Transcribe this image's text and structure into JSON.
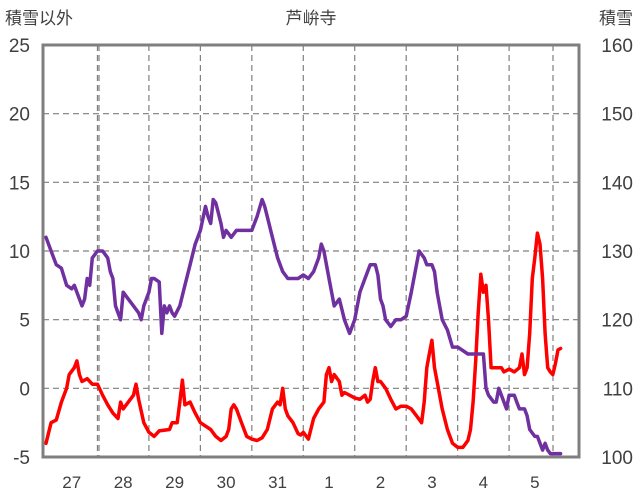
{
  "chart_data": {
    "type": "line",
    "title": "芦峅寺",
    "ylabel_left": "積雪以外",
    "ylabel_right": "積雪",
    "y_left": {
      "min": -5,
      "max": 25,
      "ticks": [
        -5,
        0,
        5,
        10,
        15,
        20,
        25
      ]
    },
    "y_right": {
      "min": 100,
      "max": 160,
      "ticks": [
        100,
        110,
        120,
        130,
        140,
        150,
        160
      ]
    },
    "x": {
      "start": 0,
      "end": 10.3,
      "ticks": [
        0.5,
        1.5,
        2.5,
        3.5,
        4.5,
        5.5,
        6.5,
        7.5,
        8.5,
        9.5
      ],
      "tick_labels": [
        "27",
        "28",
        "29",
        "30",
        "31",
        "1",
        "2",
        "3",
        "4",
        "5"
      ]
    },
    "grid": {
      "vertical_dashed": true,
      "horizontal_dashed_left_ticks": true
    },
    "series": [
      {
        "axis": "left",
        "color": "#ff0000",
        "points": [
          [
            0.0,
            -4.0
          ],
          [
            0.1,
            -2.5
          ],
          [
            0.2,
            -2.3
          ],
          [
            0.3,
            -1.0
          ],
          [
            0.4,
            0.0
          ],
          [
            0.45,
            1.0
          ],
          [
            0.55,
            1.5
          ],
          [
            0.6,
            2.0
          ],
          [
            0.65,
            1.0
          ],
          [
            0.7,
            0.5
          ],
          [
            0.8,
            0.7
          ],
          [
            0.9,
            0.3
          ],
          [
            1.0,
            0.3
          ],
          [
            1.1,
            -0.5
          ],
          [
            1.2,
            -1.2
          ],
          [
            1.3,
            -1.8
          ],
          [
            1.4,
            -2.2
          ],
          [
            1.45,
            -1.0
          ],
          [
            1.5,
            -1.5
          ],
          [
            1.6,
            -1.0
          ],
          [
            1.7,
            -0.5
          ],
          [
            1.75,
            0.3
          ],
          [
            1.8,
            -0.8
          ],
          [
            1.9,
            -2.5
          ],
          [
            2.0,
            -3.2
          ],
          [
            2.1,
            -3.5
          ],
          [
            2.2,
            -3.1
          ],
          [
            2.4,
            -3.0
          ],
          [
            2.45,
            -2.5
          ],
          [
            2.55,
            -2.5
          ],
          [
            2.6,
            -1.0
          ],
          [
            2.65,
            0.6
          ],
          [
            2.7,
            -1.2
          ],
          [
            2.8,
            -1.0
          ],
          [
            2.9,
            -1.8
          ],
          [
            3.0,
            -2.5
          ],
          [
            3.2,
            -3.0
          ],
          [
            3.3,
            -3.5
          ],
          [
            3.4,
            -3.8
          ],
          [
            3.5,
            -3.5
          ],
          [
            3.55,
            -3.0
          ],
          [
            3.6,
            -1.5
          ],
          [
            3.65,
            -1.2
          ],
          [
            3.7,
            -1.5
          ],
          [
            3.8,
            -2.5
          ],
          [
            3.9,
            -3.5
          ],
          [
            4.0,
            -3.7
          ],
          [
            4.1,
            -3.8
          ],
          [
            4.2,
            -3.6
          ],
          [
            4.3,
            -3.0
          ],
          [
            4.4,
            -1.5
          ],
          [
            4.5,
            -1.0
          ],
          [
            4.55,
            -1.2
          ],
          [
            4.6,
            0.0
          ],
          [
            4.65,
            -1.5
          ],
          [
            4.7,
            -2.0
          ],
          [
            4.8,
            -2.5
          ],
          [
            4.9,
            -3.3
          ],
          [
            4.95,
            -3.4
          ],
          [
            5.0,
            -3.2
          ],
          [
            5.1,
            -3.7
          ],
          [
            5.2,
            -2.2
          ],
          [
            5.3,
            -1.5
          ],
          [
            5.4,
            -1.0
          ],
          [
            5.45,
            1.0
          ],
          [
            5.5,
            1.5
          ],
          [
            5.55,
            0.5
          ],
          [
            5.6,
            1.0
          ],
          [
            5.7,
            0.5
          ],
          [
            5.75,
            -0.5
          ],
          [
            5.8,
            -0.3
          ],
          [
            5.9,
            -0.5
          ],
          [
            6.0,
            -0.7
          ],
          [
            6.1,
            -0.8
          ],
          [
            6.2,
            -0.5
          ],
          [
            6.25,
            -1.0
          ],
          [
            6.3,
            -0.8
          ],
          [
            6.35,
            0.5
          ],
          [
            6.4,
            1.5
          ],
          [
            6.45,
            0.5
          ],
          [
            6.5,
            0.5
          ],
          [
            6.6,
            0.0
          ],
          [
            6.7,
            -0.8
          ],
          [
            6.8,
            -1.5
          ],
          [
            6.9,
            -1.3
          ],
          [
            7.0,
            -1.3
          ],
          [
            7.1,
            -1.5
          ],
          [
            7.2,
            -2.0
          ],
          [
            7.3,
            -2.5
          ],
          [
            7.35,
            -1.0
          ],
          [
            7.4,
            1.5
          ],
          [
            7.45,
            2.5
          ],
          [
            7.5,
            3.5
          ],
          [
            7.55,
            1.5
          ],
          [
            7.6,
            0.5
          ],
          [
            7.7,
            -1.5
          ],
          [
            7.8,
            -3.0
          ],
          [
            7.9,
            -4.0
          ],
          [
            8.0,
            -4.3
          ],
          [
            8.1,
            -4.3
          ],
          [
            8.2,
            -3.8
          ],
          [
            8.25,
            -3.0
          ],
          [
            8.3,
            -1.0
          ],
          [
            8.35,
            2.0
          ],
          [
            8.4,
            5.5
          ],
          [
            8.45,
            8.3
          ],
          [
            8.5,
            7.0
          ],
          [
            8.55,
            7.5
          ],
          [
            8.6,
            5.0
          ],
          [
            8.65,
            1.5
          ],
          [
            8.75,
            1.5
          ],
          [
            8.85,
            1.5
          ],
          [
            8.9,
            1.2
          ],
          [
            9.0,
            1.4
          ],
          [
            9.1,
            1.2
          ],
          [
            9.2,
            1.5
          ],
          [
            9.25,
            2.5
          ],
          [
            9.3,
            1.0
          ],
          [
            9.35,
            1.5
          ],
          [
            9.4,
            4.0
          ],
          [
            9.45,
            8.0
          ],
          [
            9.5,
            9.5
          ],
          [
            9.55,
            11.3
          ],
          [
            9.6,
            10.5
          ],
          [
            9.65,
            8.0
          ],
          [
            9.7,
            4.0
          ],
          [
            9.75,
            1.5
          ],
          [
            9.8,
            1.2
          ],
          [
            9.85,
            1.0
          ],
          [
            9.9,
            1.8
          ],
          [
            9.95,
            2.8
          ],
          [
            10.0,
            2.9
          ]
        ]
      },
      {
        "axis": "right",
        "color": "#7030a0",
        "points": [
          [
            0.0,
            132.0
          ],
          [
            0.1,
            130.0
          ],
          [
            0.2,
            128.0
          ],
          [
            0.3,
            127.5
          ],
          [
            0.4,
            125.0
          ],
          [
            0.5,
            124.5
          ],
          [
            0.55,
            125.0
          ],
          [
            0.6,
            124.0
          ],
          [
            0.7,
            122.0
          ],
          [
            0.75,
            123.0
          ],
          [
            0.8,
            126.0
          ],
          [
            0.85,
            125.0
          ],
          [
            0.9,
            129.0
          ],
          [
            1.0,
            130.0
          ],
          [
            1.1,
            130.0
          ],
          [
            1.2,
            129.0
          ],
          [
            1.25,
            127.0
          ],
          [
            1.3,
            126.0
          ],
          [
            1.35,
            122.0
          ],
          [
            1.4,
            121.0
          ],
          [
            1.45,
            120.0
          ],
          [
            1.5,
            124.0
          ],
          [
            1.6,
            123.0
          ],
          [
            1.7,
            122.0
          ],
          [
            1.8,
            121.0
          ],
          [
            1.85,
            120.0
          ],
          [
            1.9,
            122.0
          ],
          [
            2.0,
            124.0
          ],
          [
            2.05,
            126.0
          ],
          [
            2.1,
            126.0
          ],
          [
            2.2,
            125.5
          ],
          [
            2.25,
            118.0
          ],
          [
            2.3,
            122.0
          ],
          [
            2.35,
            121.0
          ],
          [
            2.4,
            122.0
          ],
          [
            2.45,
            121.0
          ],
          [
            2.5,
            120.5
          ],
          [
            2.6,
            122.0
          ],
          [
            2.7,
            125.0
          ],
          [
            2.8,
            128.0
          ],
          [
            2.9,
            131.0
          ],
          [
            3.0,
            133.0
          ],
          [
            3.1,
            136.5
          ],
          [
            3.15,
            135.0
          ],
          [
            3.2,
            134.0
          ],
          [
            3.25,
            137.5
          ],
          [
            3.3,
            137.0
          ],
          [
            3.4,
            134.0
          ],
          [
            3.45,
            132.0
          ],
          [
            3.5,
            133.0
          ],
          [
            3.55,
            132.5
          ],
          [
            3.6,
            132.0
          ],
          [
            3.7,
            133.0
          ],
          [
            3.8,
            133.0
          ],
          [
            4.0,
            133.0
          ],
          [
            4.1,
            135.0
          ],
          [
            4.2,
            137.5
          ],
          [
            4.25,
            136.5
          ],
          [
            4.3,
            135.0
          ],
          [
            4.4,
            132.0
          ],
          [
            4.5,
            129.0
          ],
          [
            4.6,
            127.0
          ],
          [
            4.7,
            126.0
          ],
          [
            4.8,
            126.0
          ],
          [
            4.9,
            126.0
          ],
          [
            5.0,
            126.5
          ],
          [
            5.1,
            126.0
          ],
          [
            5.2,
            127.0
          ],
          [
            5.3,
            129.0
          ],
          [
            5.35,
            131.0
          ],
          [
            5.4,
            130.0
          ],
          [
            5.5,
            126.0
          ],
          [
            5.55,
            124.0
          ],
          [
            5.6,
            122.0
          ],
          [
            5.7,
            123.0
          ],
          [
            5.75,
            121.5
          ],
          [
            5.8,
            120.0
          ],
          [
            5.9,
            118.0
          ],
          [
            6.0,
            120.0
          ],
          [
            6.1,
            124.0
          ],
          [
            6.2,
            126.0
          ],
          [
            6.3,
            128.0
          ],
          [
            6.4,
            128.0
          ],
          [
            6.45,
            126.5
          ],
          [
            6.5,
            123.0
          ],
          [
            6.55,
            122.0
          ],
          [
            6.6,
            120.0
          ],
          [
            6.7,
            119.0
          ],
          [
            6.8,
            120.0
          ],
          [
            6.9,
            120.0
          ],
          [
            7.0,
            120.5
          ],
          [
            7.1,
            124.0
          ],
          [
            7.2,
            128.0
          ],
          [
            7.25,
            130.0
          ],
          [
            7.3,
            129.5
          ],
          [
            7.35,
            129.0
          ],
          [
            7.4,
            128.0
          ],
          [
            7.5,
            128.0
          ],
          [
            7.55,
            127.0
          ],
          [
            7.6,
            124.0
          ],
          [
            7.7,
            120.0
          ],
          [
            7.8,
            118.5
          ],
          [
            7.9,
            116.0
          ],
          [
            8.0,
            116.0
          ],
          [
            8.2,
            115.0
          ],
          [
            8.5,
            115.0
          ],
          [
            8.55,
            110.0
          ],
          [
            8.6,
            109.0
          ],
          [
            8.7,
            108.0
          ],
          [
            8.75,
            108.0
          ],
          [
            8.8,
            110.0
          ],
          [
            8.85,
            109.0
          ],
          [
            8.95,
            107.0
          ],
          [
            9.0,
            109.0
          ],
          [
            9.1,
            109.0
          ],
          [
            9.15,
            108.0
          ],
          [
            9.2,
            107.0
          ],
          [
            9.3,
            107.0
          ],
          [
            9.35,
            106.0
          ],
          [
            9.4,
            104.0
          ],
          [
            9.45,
            103.5
          ],
          [
            9.5,
            103.0
          ],
          [
            9.55,
            103.0
          ],
          [
            9.6,
            102.0
          ],
          [
            9.65,
            101.0
          ],
          [
            9.7,
            102.0
          ],
          [
            9.75,
            101.0
          ],
          [
            9.8,
            100.5
          ],
          [
            9.9,
            100.5
          ],
          [
            10.0,
            100.5
          ]
        ]
      }
    ]
  }
}
